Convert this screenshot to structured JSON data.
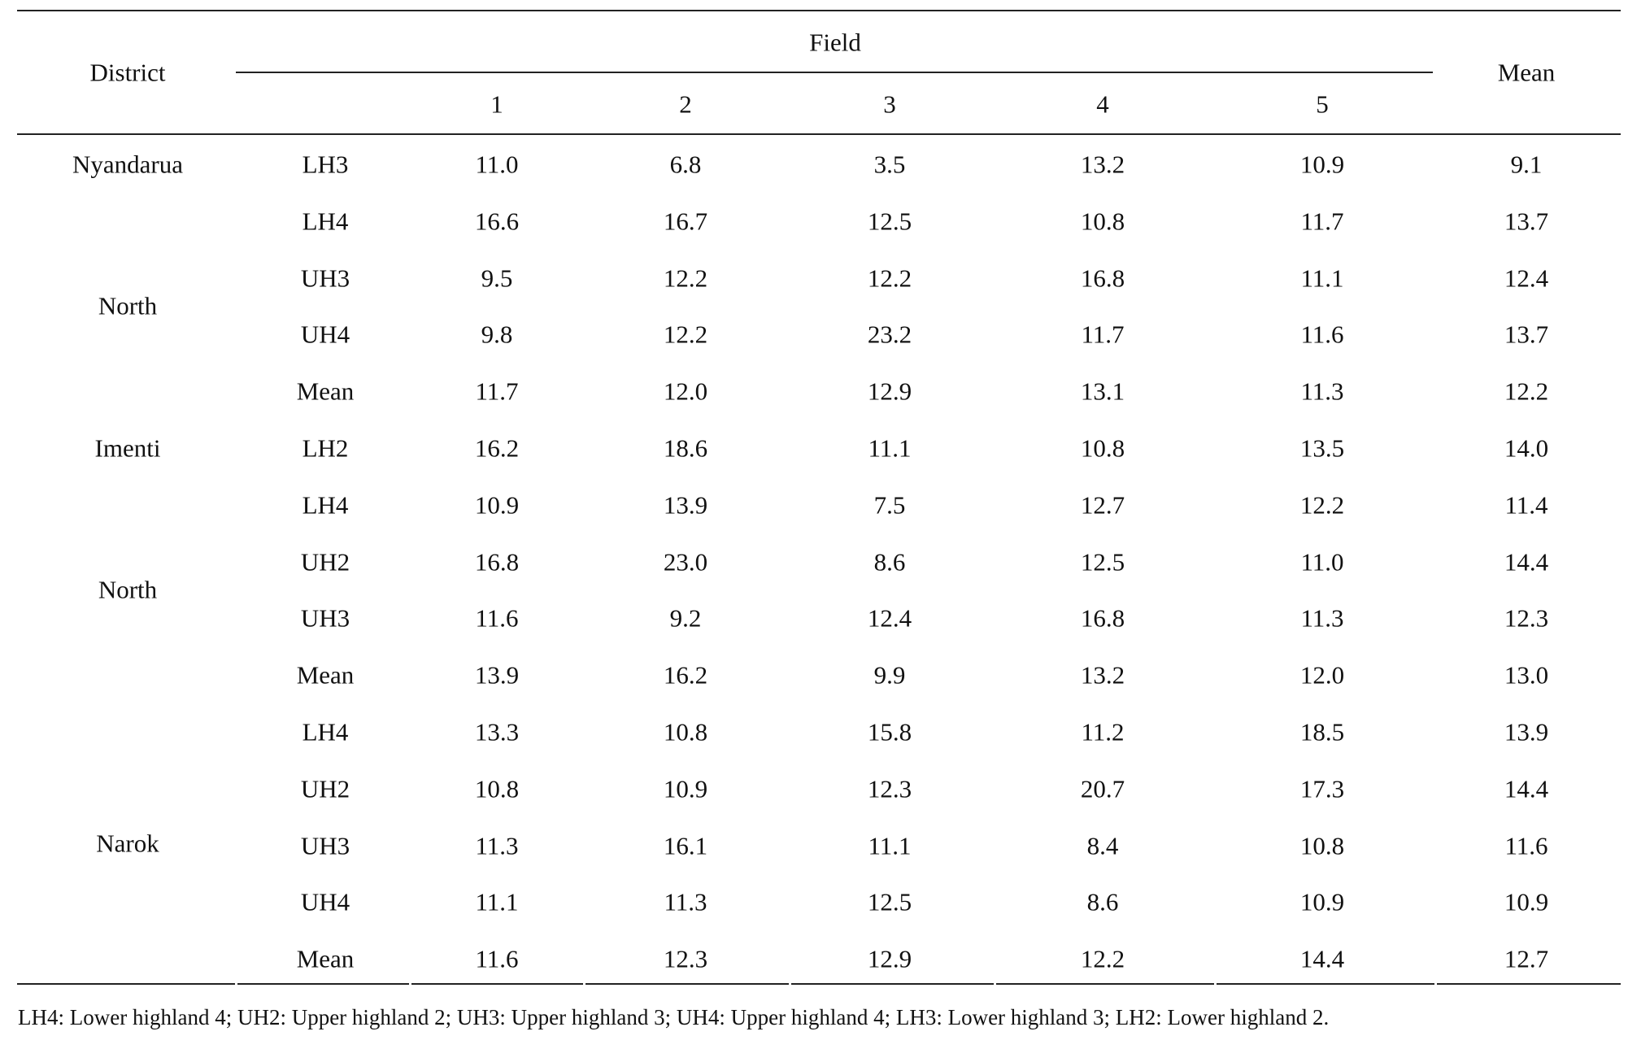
{
  "table": {
    "header": {
      "district": "District",
      "field": "Field",
      "mean": "Mean",
      "field_numbers": [
        "1",
        "2",
        "3",
        "4",
        "5"
      ]
    },
    "district_labels": [
      "Nyandarua",
      "North",
      "Imenti",
      "North",
      "Narok"
    ],
    "rows": [
      {
        "zone": "LH3",
        "values": [
          "11.0",
          "6.8",
          "3.5",
          "13.2",
          "10.9"
        ],
        "mean": "9.1"
      },
      {
        "zone": "LH4",
        "values": [
          "16.6",
          "16.7",
          "12.5",
          "10.8",
          "11.7"
        ],
        "mean": "13.7"
      },
      {
        "zone": "UH3",
        "values": [
          "9.5",
          "12.2",
          "12.2",
          "16.8",
          "11.1"
        ],
        "mean": "12.4"
      },
      {
        "zone": "UH4",
        "values": [
          "9.8",
          "12.2",
          "23.2",
          "11.7",
          "11.6"
        ],
        "mean": "13.7"
      },
      {
        "zone": "Mean",
        "values": [
          "11.7",
          "12.0",
          "12.9",
          "13.1",
          "11.3"
        ],
        "mean": "12.2"
      },
      {
        "zone": "LH2",
        "values": [
          "16.2",
          "18.6",
          "11.1",
          "10.8",
          "13.5"
        ],
        "mean": "14.0"
      },
      {
        "zone": "LH4",
        "values": [
          "10.9",
          "13.9",
          "7.5",
          "12.7",
          "12.2"
        ],
        "mean": "11.4"
      },
      {
        "zone": "UH2",
        "values": [
          "16.8",
          "23.0",
          "8.6",
          "12.5",
          "11.0"
        ],
        "mean": "14.4"
      },
      {
        "zone": "UH3",
        "values": [
          "11.6",
          "9.2",
          "12.4",
          "16.8",
          "11.3"
        ],
        "mean": "12.3"
      },
      {
        "zone": "Mean",
        "values": [
          "13.9",
          "16.2",
          "9.9",
          "13.2",
          "12.0"
        ],
        "mean": "13.0"
      },
      {
        "zone": "LH4",
        "values": [
          "13.3",
          "10.8",
          "15.8",
          "11.2",
          "18.5"
        ],
        "mean": "13.9"
      },
      {
        "zone": "UH2",
        "values": [
          "10.8",
          "10.9",
          "12.3",
          "20.7",
          "17.3"
        ],
        "mean": "14.4"
      },
      {
        "zone": "UH3",
        "values": [
          "11.3",
          "16.1",
          "11.1",
          "8.4",
          "10.8"
        ],
        "mean": "11.6"
      },
      {
        "zone": "UH4",
        "values": [
          "11.1",
          "11.3",
          "12.5",
          "8.6",
          "10.9"
        ],
        "mean": "10.9"
      },
      {
        "zone": "Mean",
        "values": [
          "11.6",
          "12.3",
          "12.9",
          "12.2",
          "14.4"
        ],
        "mean": "12.7"
      }
    ]
  },
  "footnote": "LH4: Lower highland 4; UH2: Upper highland 2; UH3: Upper highland 3; UH4: Upper highland 4; LH3: Lower highland 3; LH2: Lower highland 2."
}
